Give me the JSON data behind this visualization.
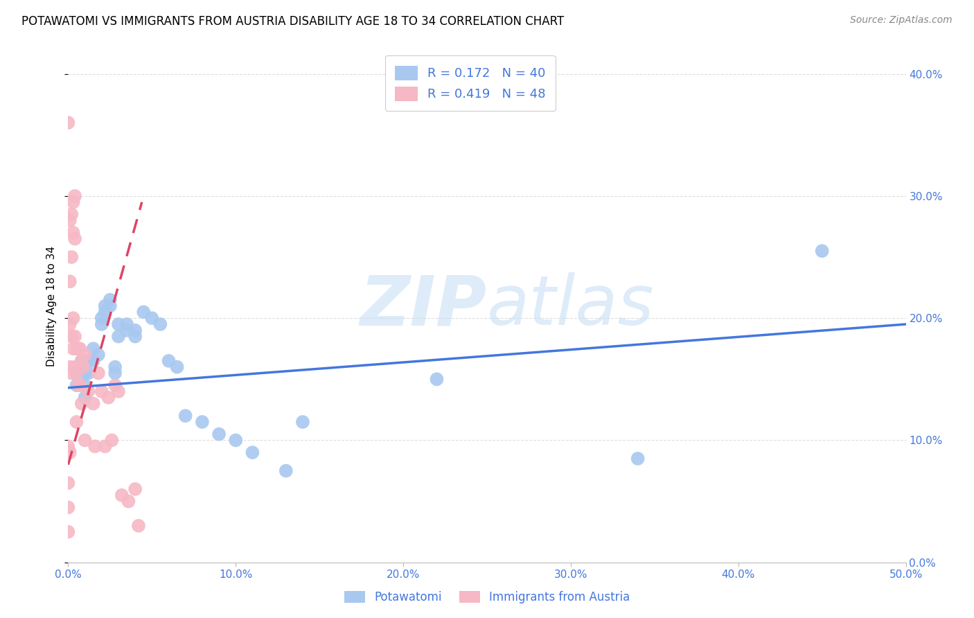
{
  "title": "POTAWATOMI VS IMMIGRANTS FROM AUSTRIA DISABILITY AGE 18 TO 34 CORRELATION CHART",
  "source": "Source: ZipAtlas.com",
  "xlabel_bottom": "Potawatomi",
  "xlabel_bottom2": "Immigrants from Austria",
  "ylabel": "Disability Age 18 to 34",
  "xlim": [
    0.0,
    0.5
  ],
  "ylim": [
    0.0,
    0.42
  ],
  "blue_R": 0.172,
  "blue_N": 40,
  "pink_R": 0.419,
  "pink_N": 48,
  "blue_color": "#A8C8F0",
  "pink_color": "#F5B8C4",
  "blue_line_color": "#4477DD",
  "pink_line_color": "#DD4466",
  "grid_color": "#DDDDDD",
  "text_color": "#4477DD",
  "watermark_zip": "ZIP",
  "watermark_atlas": "atlas",
  "blue_scatter_x": [
    0.005,
    0.005,
    0.008,
    0.01,
    0.01,
    0.01,
    0.012,
    0.012,
    0.015,
    0.015,
    0.018,
    0.02,
    0.02,
    0.022,
    0.022,
    0.025,
    0.025,
    0.028,
    0.028,
    0.03,
    0.03,
    0.035,
    0.035,
    0.04,
    0.04,
    0.045,
    0.05,
    0.055,
    0.06,
    0.065,
    0.07,
    0.08,
    0.09,
    0.1,
    0.11,
    0.13,
    0.14,
    0.22,
    0.34,
    0.45
  ],
  "blue_scatter_y": [
    0.155,
    0.145,
    0.165,
    0.155,
    0.145,
    0.135,
    0.165,
    0.155,
    0.175,
    0.165,
    0.17,
    0.2,
    0.195,
    0.21,
    0.205,
    0.215,
    0.21,
    0.16,
    0.155,
    0.195,
    0.185,
    0.195,
    0.19,
    0.19,
    0.185,
    0.205,
    0.2,
    0.195,
    0.165,
    0.16,
    0.12,
    0.115,
    0.105,
    0.1,
    0.09,
    0.075,
    0.115,
    0.15,
    0.085,
    0.255
  ],
  "pink_scatter_x": [
    0.0,
    0.0,
    0.0,
    0.0,
    0.0,
    0.001,
    0.001,
    0.001,
    0.001,
    0.001,
    0.002,
    0.002,
    0.002,
    0.002,
    0.003,
    0.003,
    0.003,
    0.003,
    0.004,
    0.004,
    0.004,
    0.004,
    0.005,
    0.005,
    0.005,
    0.006,
    0.006,
    0.007,
    0.007,
    0.008,
    0.008,
    0.009,
    0.01,
    0.01,
    0.012,
    0.015,
    0.016,
    0.018,
    0.02,
    0.022,
    0.024,
    0.026,
    0.028,
    0.03,
    0.032,
    0.036,
    0.04,
    0.042
  ],
  "pink_scatter_y": [
    0.36,
    0.095,
    0.065,
    0.045,
    0.025,
    0.28,
    0.23,
    0.195,
    0.16,
    0.09,
    0.285,
    0.25,
    0.185,
    0.155,
    0.295,
    0.27,
    0.2,
    0.175,
    0.3,
    0.265,
    0.185,
    0.16,
    0.175,
    0.155,
    0.115,
    0.175,
    0.145,
    0.175,
    0.145,
    0.165,
    0.13,
    0.16,
    0.17,
    0.1,
    0.14,
    0.13,
    0.095,
    0.155,
    0.14,
    0.095,
    0.135,
    0.1,
    0.145,
    0.14,
    0.055,
    0.05,
    0.06,
    0.03
  ],
  "blue_line_x": [
    0.0,
    0.5
  ],
  "blue_line_y": [
    0.143,
    0.195
  ],
  "pink_line_x": [
    0.0,
    0.044
  ],
  "pink_line_y": [
    0.08,
    0.295
  ]
}
